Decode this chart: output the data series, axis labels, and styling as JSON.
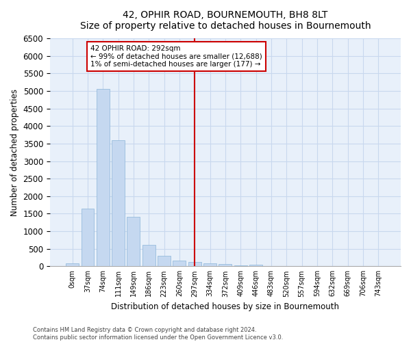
{
  "title": "42, OPHIR ROAD, BOURNEMOUTH, BH8 8LT",
  "subtitle": "Size of property relative to detached houses in Bournemouth",
  "xlabel": "Distribution of detached houses by size in Bournemouth",
  "ylabel": "Number of detached properties",
  "footer_line1": "Contains HM Land Registry data © Crown copyright and database right 2024.",
  "footer_line2": "Contains public sector information licensed under the Open Government Licence v3.0.",
  "bar_labels": [
    "0sqm",
    "37sqm",
    "74sqm",
    "111sqm",
    "149sqm",
    "186sqm",
    "223sqm",
    "260sqm",
    "297sqm",
    "334sqm",
    "372sqm",
    "409sqm",
    "446sqm",
    "483sqm",
    "520sqm",
    "557sqm",
    "594sqm",
    "632sqm",
    "669sqm",
    "706sqm",
    "743sqm"
  ],
  "bar_values": [
    75,
    1650,
    5060,
    3590,
    1410,
    620,
    290,
    155,
    115,
    75,
    55,
    35,
    45,
    0,
    0,
    0,
    0,
    0,
    0,
    0,
    0
  ],
  "bar_color": "#c5d8f0",
  "bar_edge_color": "#8ab4d8",
  "bg_color": "#e8f0fa",
  "grid_color": "#c8d8ee",
  "fig_bg": "#ffffff",
  "vline_idx": 8,
  "vline_color": "#cc0000",
  "annot_line1": "42 OPHIR ROAD: 292sqm",
  "annot_line2": "← 99% of detached houses are smaller (12,688)",
  "annot_line3": "1% of semi-detached houses are larger (177) →",
  "annot_border_color": "#cc0000",
  "ylim_max": 6500,
  "ytick_step": 500
}
